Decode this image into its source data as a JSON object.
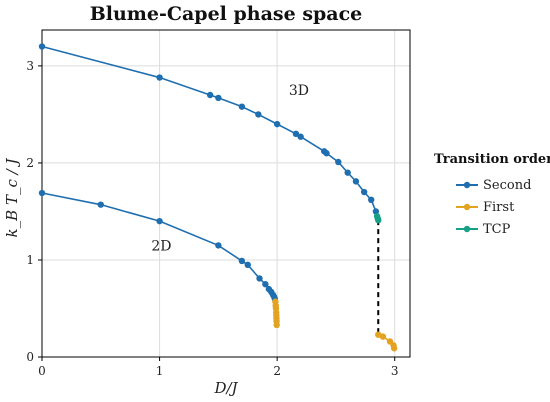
{
  "chart_data": {
    "type": "line",
    "title": "Blume-Capel phase space",
    "xlabel": "D/J",
    "ylabel": "k_B T_c / J",
    "xlim": [
      0,
      3.13
    ],
    "ylim": [
      0,
      3.37
    ],
    "xticks": [
      "0",
      "1",
      "2",
      "3"
    ],
    "yticks": [
      "0",
      "1",
      "2",
      "3"
    ],
    "grid": true,
    "legend_title": "Transition order",
    "legend_position": "right",
    "colors": {
      "Second": "#1f6fb0",
      "First": "#e3a220",
      "TCP": "#16a085",
      "dashed": "#000000"
    },
    "annotations": [
      {
        "text": "3D",
        "x": 2.1,
        "y": 2.7
      },
      {
        "text": "2D",
        "x": 0.93,
        "y": 1.1
      }
    ],
    "series": [
      {
        "name": "Second",
        "curve": "3D",
        "x": [
          0.0,
          1.0,
          1.43,
          1.5,
          1.7,
          1.84,
          2.0,
          2.16,
          2.2,
          2.4,
          2.42,
          2.52,
          2.6,
          2.67,
          2.74,
          2.8,
          2.84
        ],
        "y": [
          3.2,
          2.88,
          2.7,
          2.67,
          2.58,
          2.5,
          2.4,
          2.3,
          2.27,
          2.12,
          2.1,
          2.01,
          1.9,
          1.81,
          1.7,
          1.62,
          1.5
        ]
      },
      {
        "name": "TCP",
        "curve": "3D",
        "x": [
          2.85,
          2.855,
          2.86
        ],
        "y": [
          1.45,
          1.43,
          1.41
        ]
      },
      {
        "name": "First",
        "curve": "3D",
        "x": [
          2.86,
          2.9,
          2.96,
          2.99,
          2.995
        ],
        "y": [
          0.23,
          0.21,
          0.16,
          0.12,
          0.09
        ]
      },
      {
        "name": "Second",
        "curve": "2D",
        "x": [
          0.0,
          0.5,
          1.0,
          1.5,
          1.7,
          1.75,
          1.85,
          1.9,
          1.93,
          1.95,
          1.965,
          1.975,
          1.98
        ],
        "y": [
          1.69,
          1.57,
          1.4,
          1.15,
          0.99,
          0.95,
          0.81,
          0.75,
          0.7,
          0.67,
          0.64,
          0.62,
          0.6
        ]
      },
      {
        "name": "First",
        "curve": "2D",
        "x": [
          1.985,
          1.988,
          1.99,
          1.992,
          1.993,
          1.994,
          1.995,
          1.996
        ],
        "y": [
          0.57,
          0.53,
          0.5,
          0.46,
          0.43,
          0.4,
          0.37,
          0.33
        ]
      }
    ],
    "dashed_line": {
      "x": [
        2.86,
        2.86
      ],
      "y": [
        1.41,
        0.23
      ]
    }
  }
}
